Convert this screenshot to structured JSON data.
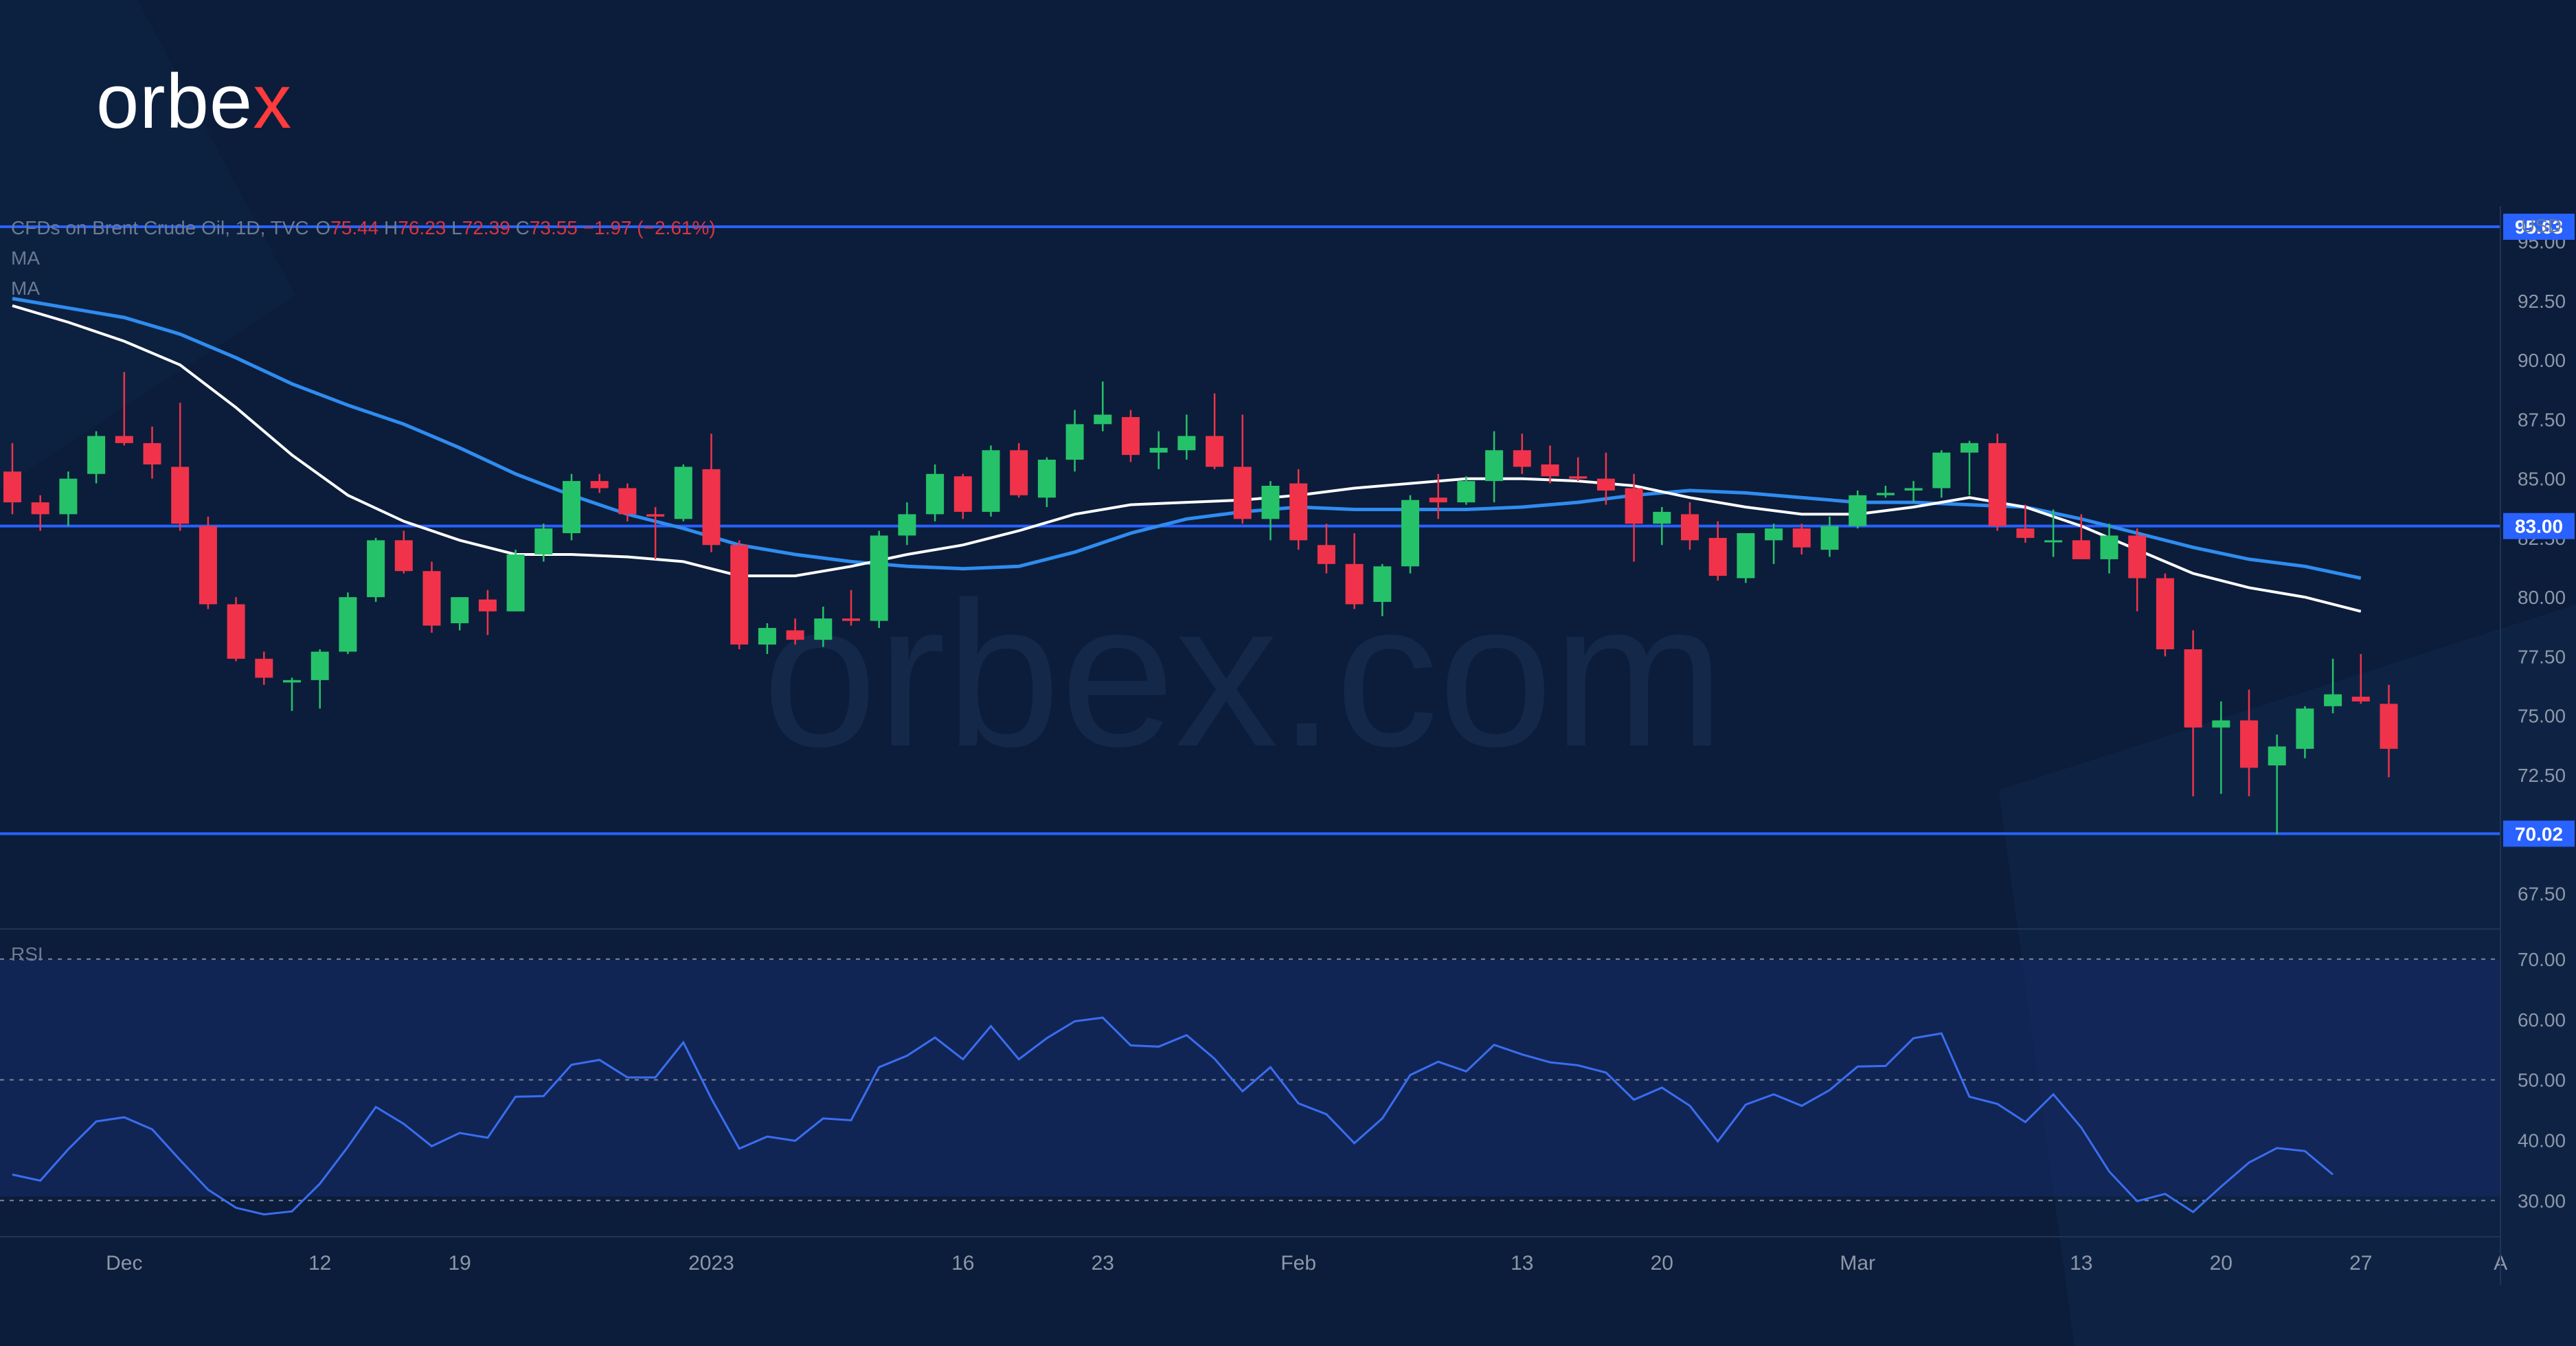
{
  "brand": {
    "logo_text": "orbe",
    "logo_accent": "x",
    "watermark": "orbex.com"
  },
  "legend": {
    "symbol": "CFDs on Brent Crude Oil, 1D, TVC",
    "open_label": "O",
    "open": "75.44",
    "high_label": "H",
    "high": "76.23",
    "low_label": "L",
    "low": "72.39",
    "close_label": "C",
    "close": "73.55",
    "change": "−1.97 (−2.61%)"
  },
  "indicators": {
    "ma1": "MA",
    "ma2": "MA",
    "rsi": "RSI"
  },
  "colors": {
    "background": "#0b1d3a",
    "up": "#26c26a",
    "down": "#f0334a",
    "level_line": "#2962ff",
    "ma_fast": "#ffffff",
    "ma_slow": "#2f8cf0",
    "rsi_line": "#3a6df0",
    "axis_text": "#8d97a8"
  },
  "chart_data": {
    "type": "candlestick",
    "currency": "USD",
    "price_ylim": [
      66.0,
      96.5
    ],
    "price_ticks": [
      "95.00",
      "92.50",
      "90.00",
      "87.50",
      "85.00",
      "82.50",
      "80.00",
      "77.50",
      "75.00",
      "72.50",
      "67.50"
    ],
    "levels": [
      {
        "label": "95.63",
        "value": 95.63
      },
      {
        "label": "83.00",
        "value": 83.0
      },
      {
        "label": "70.02",
        "value": 70.02
      }
    ],
    "x_tick_labels": [
      {
        "label": "Dec",
        "i": 4
      },
      {
        "label": "12",
        "i": 11
      },
      {
        "label": "19",
        "i": 16
      },
      {
        "label": "2023",
        "i": 25
      },
      {
        "label": "16",
        "i": 34
      },
      {
        "label": "23",
        "i": 39
      },
      {
        "label": "Feb",
        "i": 46
      },
      {
        "label": "13",
        "i": 54
      },
      {
        "label": "20",
        "i": 59
      },
      {
        "label": "Mar",
        "i": 66
      },
      {
        "label": "13",
        "i": 74
      },
      {
        "label": "20",
        "i": 79
      },
      {
        "label": "27",
        "i": 84
      },
      {
        "label": "A",
        "i": 89
      }
    ],
    "candles": [
      [
        85.3,
        86.5,
        83.5,
        84.0
      ],
      [
        84.0,
        84.3,
        82.8,
        83.5
      ],
      [
        83.5,
        85.3,
        83.0,
        85.0
      ],
      [
        85.2,
        87.0,
        84.8,
        86.8
      ],
      [
        86.8,
        89.5,
        86.4,
        86.5
      ],
      [
        86.5,
        87.2,
        85.0,
        85.6
      ],
      [
        85.5,
        88.2,
        82.8,
        83.1
      ],
      [
        83.0,
        83.4,
        79.5,
        79.7
      ],
      [
        79.7,
        80.0,
        77.3,
        77.4
      ],
      [
        77.4,
        77.7,
        76.3,
        76.6
      ],
      [
        76.4,
        76.6,
        75.2,
        76.5
      ],
      [
        76.5,
        77.8,
        75.3,
        77.7
      ],
      [
        77.7,
        80.2,
        77.6,
        80.0
      ],
      [
        80.0,
        82.5,
        79.8,
        82.4
      ],
      [
        82.4,
        82.8,
        81.0,
        81.1
      ],
      [
        81.1,
        81.5,
        78.5,
        78.8
      ],
      [
        78.9,
        80.0,
        78.6,
        80.0
      ],
      [
        79.9,
        80.3,
        78.4,
        79.4
      ],
      [
        79.4,
        82.0,
        79.4,
        81.8
      ],
      [
        81.8,
        83.1,
        81.5,
        82.9
      ],
      [
        82.7,
        85.2,
        82.4,
        84.9
      ],
      [
        84.9,
        85.2,
        84.4,
        84.6
      ],
      [
        84.6,
        84.8,
        83.2,
        83.5
      ],
      [
        83.5,
        83.8,
        81.6,
        83.4
      ],
      [
        83.3,
        85.6,
        83.2,
        85.5
      ],
      [
        85.4,
        86.9,
        81.9,
        82.2
      ],
      [
        82.2,
        82.4,
        77.8,
        78.0
      ],
      [
        78.0,
        78.9,
        77.6,
        78.7
      ],
      [
        78.6,
        79.1,
        78.0,
        78.2
      ],
      [
        78.2,
        79.6,
        77.9,
        79.1
      ],
      [
        79.1,
        80.3,
        78.8,
        79.0
      ],
      [
        79.0,
        82.8,
        78.7,
        82.6
      ],
      [
        82.6,
        84.0,
        82.2,
        83.5
      ],
      [
        83.5,
        85.6,
        83.2,
        85.2
      ],
      [
        85.1,
        85.2,
        83.3,
        83.6
      ],
      [
        83.6,
        86.4,
        83.4,
        86.2
      ],
      [
        86.2,
        86.5,
        84.2,
        84.3
      ],
      [
        84.2,
        85.9,
        83.8,
        85.8
      ],
      [
        85.8,
        87.9,
        85.3,
        87.3
      ],
      [
        87.3,
        89.1,
        87.0,
        87.7
      ],
      [
        87.6,
        87.9,
        85.7,
        86.0
      ],
      [
        86.1,
        87.0,
        85.4,
        86.3
      ],
      [
        86.2,
        87.7,
        85.8,
        86.8
      ],
      [
        86.8,
        88.6,
        85.4,
        85.5
      ],
      [
        85.5,
        87.7,
        83.1,
        83.3
      ],
      [
        83.3,
        84.9,
        82.4,
        84.7
      ],
      [
        84.8,
        85.4,
        82.0,
        82.4
      ],
      [
        82.2,
        83.1,
        81.0,
        81.4
      ],
      [
        81.4,
        82.7,
        79.5,
        79.7
      ],
      [
        79.8,
        81.4,
        79.2,
        81.3
      ],
      [
        81.3,
        84.3,
        81.0,
        84.1
      ],
      [
        84.2,
        85.2,
        83.3,
        84.0
      ],
      [
        84.0,
        85.1,
        83.9,
        84.9
      ],
      [
        84.9,
        87.0,
        84.0,
        86.2
      ],
      [
        86.2,
        86.9,
        85.2,
        85.5
      ],
      [
        85.6,
        86.4,
        84.8,
        85.1
      ],
      [
        85.1,
        85.9,
        84.9,
        85.0
      ],
      [
        85.0,
        86.1,
        83.9,
        84.5
      ],
      [
        84.6,
        85.2,
        81.5,
        83.1
      ],
      [
        83.1,
        83.8,
        82.2,
        83.6
      ],
      [
        83.5,
        84.0,
        82.0,
        82.4
      ],
      [
        82.5,
        83.2,
        80.7,
        80.9
      ],
      [
        80.8,
        82.7,
        80.6,
        82.7
      ],
      [
        82.4,
        83.1,
        81.4,
        82.9
      ],
      [
        82.9,
        83.1,
        81.8,
        82.1
      ],
      [
        82.0,
        83.4,
        81.7,
        83.0
      ],
      [
        83.0,
        84.5,
        82.9,
        84.3
      ],
      [
        84.3,
        84.7,
        84.2,
        84.4
      ],
      [
        84.5,
        84.9,
        84.0,
        84.6
      ],
      [
        84.6,
        86.2,
        84.2,
        86.1
      ],
      [
        86.1,
        86.6,
        84.3,
        86.5
      ],
      [
        86.5,
        86.9,
        82.8,
        83.0
      ],
      [
        82.9,
        83.9,
        82.3,
        82.5
      ],
      [
        82.4,
        83.7,
        81.7,
        82.4
      ],
      [
        82.4,
        83.5,
        81.6,
        81.6
      ],
      [
        81.6,
        83.1,
        81.0,
        82.6
      ],
      [
        82.6,
        82.9,
        79.4,
        80.8
      ],
      [
        80.8,
        81.0,
        77.5,
        77.8
      ],
      [
        77.8,
        78.6,
        71.6,
        74.5
      ],
      [
        74.5,
        75.6,
        71.7,
        74.8
      ],
      [
        74.8,
        76.1,
        71.6,
        72.8
      ],
      [
        72.9,
        74.2,
        70.0,
        73.7
      ],
      [
        73.6,
        75.4,
        73.2,
        75.3
      ],
      [
        75.4,
        77.4,
        75.1,
        75.9
      ],
      [
        75.8,
        77.6,
        75.5,
        75.6
      ],
      [
        75.5,
        76.3,
        72.4,
        73.6
      ]
    ],
    "ma_fast": [
      [
        0,
        92.3
      ],
      [
        2,
        91.6
      ],
      [
        4,
        90.8
      ],
      [
        6,
        89.8
      ],
      [
        8,
        88.0
      ],
      [
        10,
        86.0
      ],
      [
        12,
        84.3
      ],
      [
        14,
        83.2
      ],
      [
        16,
        82.4
      ],
      [
        18,
        81.8
      ],
      [
        20,
        81.8
      ],
      [
        22,
        81.7
      ],
      [
        24,
        81.5
      ],
      [
        26,
        80.9
      ],
      [
        28,
        80.9
      ],
      [
        30,
        81.3
      ],
      [
        32,
        81.8
      ],
      [
        34,
        82.2
      ],
      [
        36,
        82.8
      ],
      [
        38,
        83.5
      ],
      [
        40,
        83.9
      ],
      [
        42,
        84.0
      ],
      [
        44,
        84.1
      ],
      [
        46,
        84.3
      ],
      [
        48,
        84.6
      ],
      [
        50,
        84.8
      ],
      [
        52,
        85.0
      ],
      [
        54,
        85.0
      ],
      [
        56,
        84.9
      ],
      [
        58,
        84.7
      ],
      [
        60,
        84.2
      ],
      [
        62,
        83.8
      ],
      [
        64,
        83.5
      ],
      [
        66,
        83.5
      ],
      [
        68,
        83.8
      ],
      [
        70,
        84.2
      ],
      [
        72,
        83.8
      ],
      [
        74,
        83.0
      ],
      [
        76,
        82.0
      ],
      [
        78,
        81.0
      ],
      [
        80,
        80.4
      ],
      [
        82,
        80.0
      ],
      [
        84,
        79.4
      ]
    ],
    "ma_slow": [
      [
        0,
        92.6
      ],
      [
        2,
        92.2
      ],
      [
        4,
        91.8
      ],
      [
        6,
        91.1
      ],
      [
        8,
        90.1
      ],
      [
        10,
        89.0
      ],
      [
        12,
        88.1
      ],
      [
        14,
        87.3
      ],
      [
        16,
        86.3
      ],
      [
        18,
        85.2
      ],
      [
        20,
        84.3
      ],
      [
        22,
        83.5
      ],
      [
        24,
        82.9
      ],
      [
        26,
        82.2
      ],
      [
        28,
        81.8
      ],
      [
        30,
        81.5
      ],
      [
        32,
        81.3
      ],
      [
        34,
        81.2
      ],
      [
        36,
        81.3
      ],
      [
        38,
        81.9
      ],
      [
        40,
        82.7
      ],
      [
        42,
        83.3
      ],
      [
        44,
        83.6
      ],
      [
        46,
        83.8
      ],
      [
        48,
        83.7
      ],
      [
        50,
        83.7
      ],
      [
        52,
        83.7
      ],
      [
        54,
        83.8
      ],
      [
        56,
        84.0
      ],
      [
        58,
        84.3
      ],
      [
        60,
        84.5
      ],
      [
        62,
        84.4
      ],
      [
        64,
        84.2
      ],
      [
        66,
        84.0
      ],
      [
        68,
        84.0
      ],
      [
        70,
        83.9
      ],
      [
        72,
        83.8
      ],
      [
        74,
        83.3
      ],
      [
        76,
        82.7
      ],
      [
        78,
        82.1
      ],
      [
        80,
        81.6
      ],
      [
        82,
        81.3
      ],
      [
        84,
        80.8
      ]
    ],
    "rsi": {
      "ylim": [
        24,
        75
      ],
      "ticks": [
        "70.00",
        "60.00",
        "50.00",
        "40.00",
        "30.00"
      ],
      "bands": [
        70,
        50,
        30
      ],
      "values": [
        34.3,
        33.3,
        38.5,
        43.1,
        43.8,
        41.8,
        36.7,
        31.8,
        28.8,
        27.7,
        28.2,
        32.8,
        38.9,
        45.5,
        42.7,
        39.0,
        41.2,
        40.4,
        47.2,
        47.3,
        52.5,
        53.3,
        50.4,
        50.4,
        56.2,
        46.9,
        38.6,
        40.6,
        39.9,
        43.6,
        43.3,
        52.1,
        54.0,
        57.0,
        53.4,
        58.9,
        53.4,
        56.9,
        59.7,
        60.3,
        55.7,
        55.5,
        57.4,
        53.5,
        48.1,
        52.1,
        46.1,
        44.3,
        39.5,
        43.6,
        50.8,
        53.0,
        51.4,
        55.8,
        54.2,
        52.9,
        52.4,
        51.2,
        46.7,
        48.7,
        45.7,
        39.8,
        45.9,
        47.6,
        45.7,
        48.3,
        52.2,
        52.3,
        56.9,
        57.7,
        47.2,
        46.0,
        43.0,
        47.6,
        42.1,
        34.8,
        29.9,
        31.1,
        28.1,
        32.3,
        36.3,
        38.7,
        38.2,
        34.3
      ]
    }
  }
}
